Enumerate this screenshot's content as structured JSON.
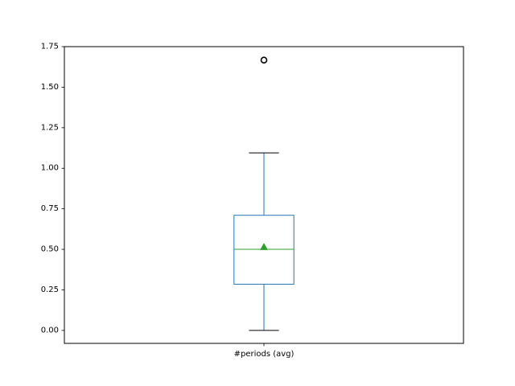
{
  "chart_data": {
    "type": "box",
    "title": "",
    "xlabel": "",
    "ylabel": "",
    "categories": [
      "#periods (avg)"
    ],
    "ylim": [
      -0.08,
      1.75
    ],
    "yticks": [
      0.0,
      0.25,
      0.5,
      0.75,
      1.0,
      1.25,
      1.5,
      1.75
    ],
    "ytick_labels": [
      "0.00",
      "0.25",
      "0.50",
      "0.75",
      "1.00",
      "1.25",
      "1.50",
      "1.75"
    ],
    "grid": false,
    "legend": "none",
    "boxes": [
      {
        "name": "#periods (avg)",
        "whisker_low": 0.0,
        "q1": 0.285,
        "median": 0.5,
        "q3": 0.71,
        "whisker_high": 1.095,
        "mean": 0.515,
        "outliers": [
          1.667
        ]
      }
    ],
    "colors": {
      "box": "#1f77b4",
      "median": "#2ca02c",
      "mean": "#2ca02c",
      "outlier": "#000000"
    }
  }
}
